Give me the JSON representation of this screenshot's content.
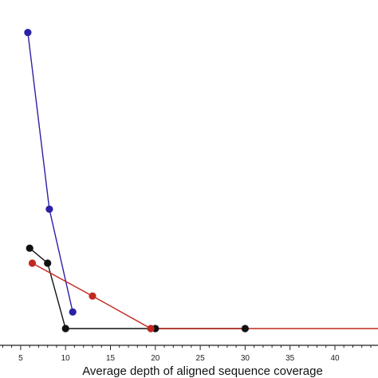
{
  "chart_data": {
    "type": "line",
    "title": "",
    "xlabel": "Average depth of aligned sequence coverage",
    "ylabel": "",
    "xlim": [
      2.7,
      44.8
    ],
    "ylim": [
      0,
      1
    ],
    "x_ticks": [
      5,
      10,
      15,
      20,
      25,
      30,
      35,
      40
    ],
    "grid": false,
    "legend": "none",
    "series": [
      {
        "color": "#2b20a6",
        "marker": "circle",
        "points": [
          {
            "x": 5.8,
            "y": 0.91
          },
          {
            "x": 8.2,
            "y": 0.367
          },
          {
            "x": 10.8,
            "y": 0.051
          }
        ]
      },
      {
        "color": "#111111",
        "marker": "circle",
        "points": [
          {
            "x": 6.0,
            "y": 0.247
          },
          {
            "x": 8.0,
            "y": 0.201
          },
          {
            "x": 10.0,
            "y": 0.0
          },
          {
            "x": 20.0,
            "y": 0.0
          },
          {
            "x": 30.0,
            "y": 0.0
          }
        ]
      },
      {
        "color": "#c0291f",
        "marker": "circle",
        "points": [
          {
            "x": 6.3,
            "y": 0.201
          },
          {
            "x": 13.0,
            "y": 0.1
          },
          {
            "x": 19.5,
            "y": 0.0
          },
          {
            "x": 30.0,
            "y": 0.0
          },
          {
            "x": 44.8,
            "y": 0.0
          }
        ],
        "markers_at": [
          0,
          1,
          2
        ]
      }
    ]
  }
}
